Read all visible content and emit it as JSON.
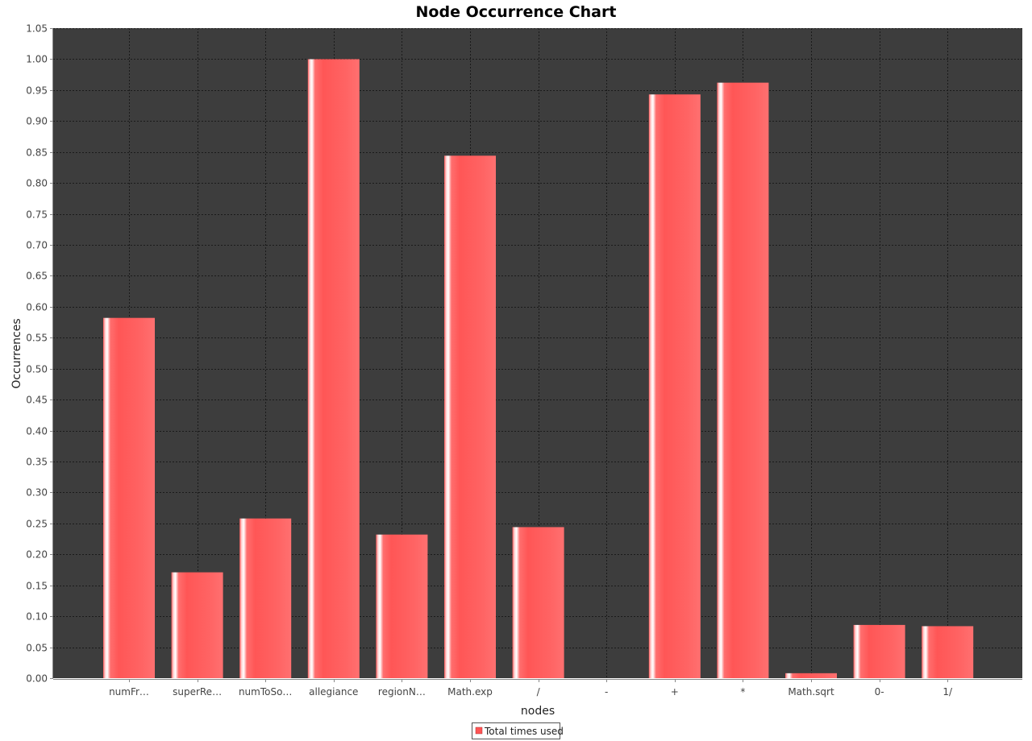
{
  "chart_data": {
    "type": "bar",
    "title": "Node Occurrence Chart",
    "xlabel": "nodes",
    "ylabel": "Occurrences",
    "categories": [
      "numFr…",
      "superRe…",
      "numToSo…",
      "allegiance",
      "regionN…",
      "Math.exp",
      "/",
      "-",
      "+",
      "*",
      "Math.sqrt",
      "0-",
      "1/"
    ],
    "series": [
      {
        "name": "Total times used",
        "values": [
          0.582,
          0.171,
          0.258,
          1.0,
          0.232,
          0.844,
          0.244,
          0.0,
          0.943,
          0.962,
          0.008,
          0.086,
          0.084
        ]
      }
    ],
    "ylim": [
      0.0,
      1.05
    ],
    "yticks": [
      "0.00",
      "0.05",
      "0.10",
      "0.15",
      "0.20",
      "0.25",
      "0.30",
      "0.35",
      "0.40",
      "0.45",
      "0.50",
      "0.55",
      "0.60",
      "0.65",
      "0.70",
      "0.75",
      "0.80",
      "0.85",
      "0.90",
      "0.95",
      "1.00",
      "1.05"
    ],
    "grid": true,
    "legend_position": "bottom-center",
    "colors": {
      "bar": "#ff5555",
      "plot_background": "#3d3d3d",
      "gridline": "#1a1a1a"
    }
  }
}
